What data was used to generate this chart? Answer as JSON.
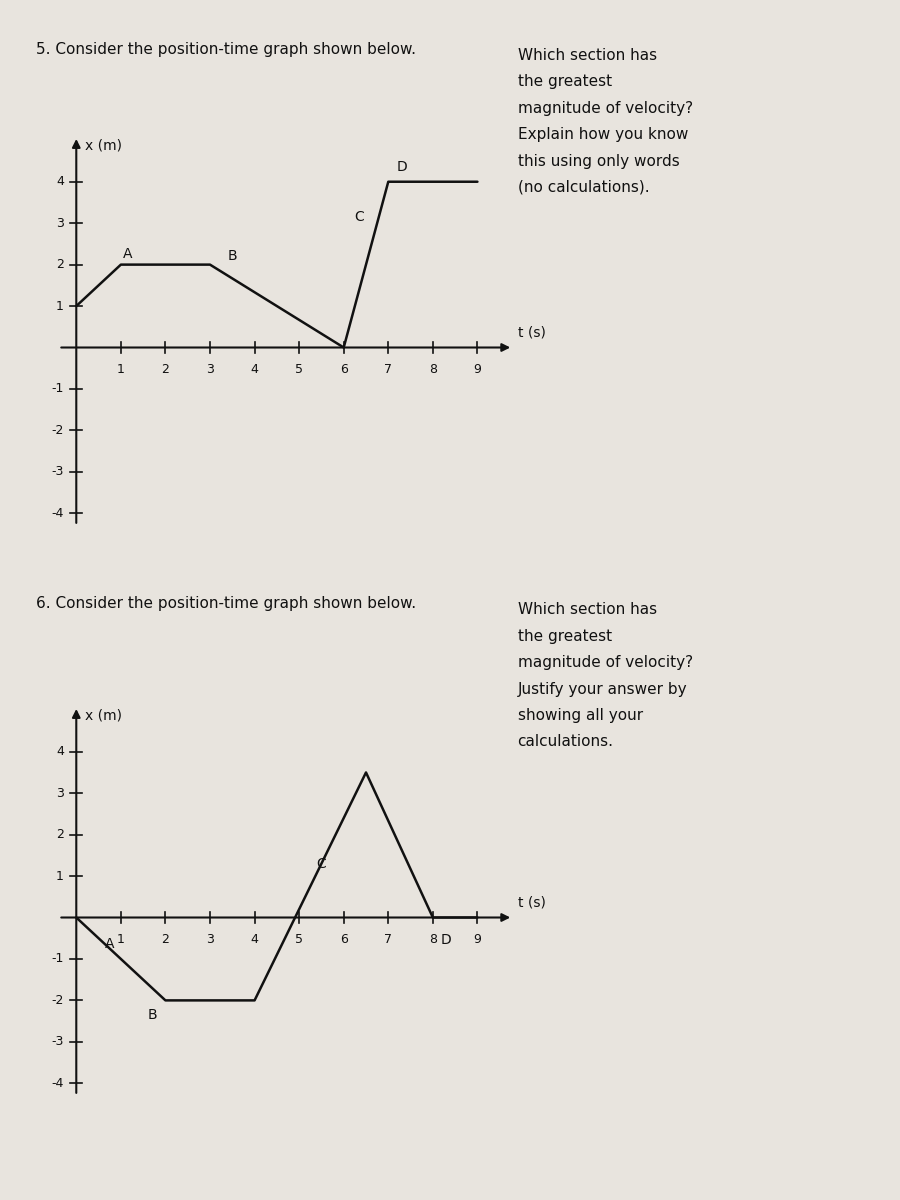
{
  "graph5": {
    "t": [
      0,
      1,
      3,
      6,
      7,
      9
    ],
    "x": [
      1,
      2,
      2,
      0,
      4,
      4
    ],
    "labels": [
      {
        "text": "A",
        "t": 1.15,
        "x": 2.25
      },
      {
        "text": "B",
        "t": 3.5,
        "x": 2.2
      },
      {
        "text": "C",
        "t": 6.35,
        "x": 3.15
      },
      {
        "text": "D",
        "t": 7.3,
        "x": 4.35
      }
    ],
    "xlabel": "t (s)",
    "ylabel": "x (m)",
    "xlim": [
      -0.5,
      10.0
    ],
    "ylim": [
      -4.5,
      5.2
    ],
    "xticks": [
      1,
      2,
      3,
      4,
      5,
      6,
      7,
      8,
      9
    ],
    "yticks": [
      -4,
      -3,
      -2,
      -1,
      1,
      2,
      3,
      4
    ]
  },
  "graph6": {
    "t": [
      0,
      1,
      2,
      4,
      6.5,
      8,
      9
    ],
    "x": [
      0,
      -1,
      -2,
      -2,
      3.5,
      0,
      0
    ],
    "labels": [
      {
        "text": "A",
        "t": 0.75,
        "x": -0.65
      },
      {
        "text": "B",
        "t": 1.7,
        "x": -2.35
      },
      {
        "text": "C",
        "t": 5.5,
        "x": 1.3
      },
      {
        "text": "D",
        "t": 8.3,
        "x": -0.55
      }
    ],
    "xlabel": "t (s)",
    "ylabel": "x (m)",
    "xlim": [
      -0.5,
      10.0
    ],
    "ylim": [
      -4.5,
      5.2
    ],
    "xticks": [
      1,
      2,
      3,
      4,
      5,
      6,
      7,
      8,
      9
    ],
    "yticks": [
      -4,
      -3,
      -2,
      -1,
      1,
      2,
      3,
      4
    ]
  },
  "bg_color": "#e8e4de",
  "paper_color": "#f0ece6",
  "line_color": "#111111",
  "text_color": "#111111",
  "q5_title": "5. Consider the position-time graph shown below.",
  "q5_right": [
    "Which section has",
    "the greatest",
    "magnitude of velocity?",
    "Explain how you know",
    "this using only words",
    "(no calculations)."
  ],
  "q6_title": "6. Consider the position-time graph shown below.",
  "q6_right": [
    "Which section has",
    "the greatest",
    "magnitude of velocity?",
    "Justify your answer by",
    "showing all your",
    "calculations."
  ]
}
